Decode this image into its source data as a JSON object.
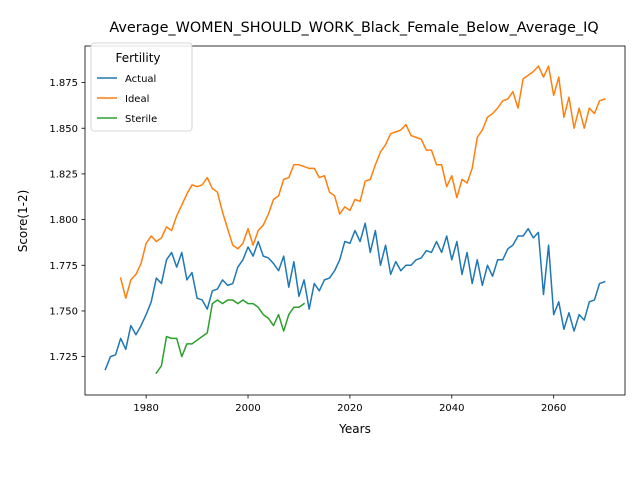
{
  "chart_data": {
    "type": "line",
    "title": "Average_WOMEN_SHOULD_WORK_Black_Female_Below_Average_IQ",
    "xlabel": "Years",
    "ylabel": "Score(1-2)",
    "xlim": [
      1968,
      2074
    ],
    "ylim": [
      1.704,
      1.895
    ],
    "xticks": [
      1980,
      2000,
      2020,
      2040,
      2060
    ],
    "xtick_labels": [
      "1980",
      "2000",
      "2020",
      "2040",
      "2060"
    ],
    "yticks": [
      1.725,
      1.75,
      1.775,
      1.8,
      1.825,
      1.85,
      1.875
    ],
    "ytick_labels": [
      "1.725",
      "1.750",
      "1.775",
      "1.800",
      "1.825",
      "1.850",
      "1.875"
    ],
    "grid": false,
    "legend": {
      "title": "Fertility",
      "placement": "top-left"
    },
    "series": [
      {
        "name": "Actual",
        "color": "#1f77b4",
        "x": [
          1972,
          1973,
          1974,
          1975,
          1976,
          1977,
          1978,
          1979,
          1980,
          1981,
          1982,
          1983,
          1984,
          1985,
          1986,
          1987,
          1988,
          1989,
          1990,
          1991,
          1992,
          1993,
          1994,
          1995,
          1996,
          1997,
          1998,
          1999,
          2000,
          2001,
          2002,
          2003,
          2004,
          2005,
          2006,
          2007,
          2008,
          2009,
          2010,
          2011,
          2012,
          2013,
          2014,
          2015,
          2016,
          2017,
          2018,
          2019,
          2020,
          2021,
          2022,
          2023,
          2024,
          2025,
          2026,
          2027,
          2028,
          2029,
          2030,
          2031,
          2032,
          2033,
          2034,
          2035,
          2036,
          2037,
          2038,
          2039,
          2040,
          2041,
          2042,
          2043,
          2044,
          2045,
          2046,
          2047,
          2048,
          2049,
          2050,
          2051,
          2052,
          2053,
          2054,
          2055,
          2056,
          2057,
          2058,
          2059,
          2060,
          2061,
          2062,
          2063,
          2064,
          2065,
          2066,
          2067,
          2068,
          2069,
          2070
        ],
        "y": [
          1.718,
          1.725,
          1.726,
          1.735,
          1.729,
          1.742,
          1.737,
          1.742,
          1.748,
          1.755,
          1.768,
          1.765,
          1.778,
          1.782,
          1.774,
          1.782,
          1.767,
          1.771,
          1.757,
          1.756,
          1.751,
          1.761,
          1.762,
          1.767,
          1.764,
          1.765,
          1.774,
          1.778,
          1.785,
          1.78,
          1.788,
          1.78,
          1.779,
          1.776,
          1.772,
          1.78,
          1.763,
          1.777,
          1.758,
          1.767,
          1.751,
          1.765,
          1.761,
          1.767,
          1.768,
          1.772,
          1.778,
          1.788,
          1.787,
          1.794,
          1.788,
          1.798,
          1.782,
          1.794,
          1.775,
          1.786,
          1.77,
          1.777,
          1.772,
          1.775,
          1.775,
          1.778,
          1.779,
          1.783,
          1.782,
          1.788,
          1.782,
          1.791,
          1.778,
          1.788,
          1.77,
          1.782,
          1.765,
          1.778,
          1.764,
          1.775,
          1.769,
          1.778,
          1.778,
          1.784,
          1.786,
          1.791,
          1.791,
          1.795,
          1.79,
          1.793,
          1.759,
          1.786,
          1.748,
          1.755,
          1.74,
          1.749,
          1.739,
          1.748,
          1.745,
          1.755,
          1.756,
          1.765,
          1.766
        ]
      },
      {
        "name": "Ideal",
        "color": "#ff7f0e",
        "x": [
          1975,
          1976,
          1977,
          1978,
          1979,
          1980,
          1981,
          1982,
          1983,
          1984,
          1985,
          1986,
          1987,
          1988,
          1989,
          1990,
          1991,
          1992,
          1993,
          1994,
          1995,
          1996,
          1997,
          1998,
          1999,
          2000,
          2001,
          2002,
          2003,
          2004,
          2005,
          2006,
          2007,
          2008,
          2009,
          2010,
          2011,
          2012,
          2013,
          2014,
          2015,
          2016,
          2017,
          2018,
          2019,
          2020,
          2021,
          2022,
          2023,
          2024,
          2025,
          2026,
          2027,
          2028,
          2029,
          2030,
          2031,
          2032,
          2033,
          2034,
          2035,
          2036,
          2037,
          2038,
          2039,
          2040,
          2041,
          2042,
          2043,
          2044,
          2045,
          2046,
          2047,
          2048,
          2049,
          2050,
          2051,
          2052,
          2053,
          2054,
          2055,
          2056,
          2057,
          2058,
          2059,
          2060,
          2061,
          2062,
          2063,
          2064,
          2065,
          2066,
          2067,
          2068,
          2069,
          2070
        ],
        "y": [
          1.768,
          1.757,
          1.767,
          1.77,
          1.776,
          1.787,
          1.791,
          1.788,
          1.79,
          1.796,
          1.794,
          1.802,
          1.808,
          1.814,
          1.819,
          1.818,
          1.819,
          1.823,
          1.817,
          1.815,
          1.804,
          1.795,
          1.786,
          1.784,
          1.787,
          1.795,
          1.786,
          1.794,
          1.797,
          1.803,
          1.811,
          1.813,
          1.822,
          1.823,
          1.83,
          1.83,
          1.829,
          1.828,
          1.828,
          1.823,
          1.824,
          1.815,
          1.813,
          1.803,
          1.807,
          1.805,
          1.811,
          1.81,
          1.821,
          1.822,
          1.83,
          1.837,
          1.841,
          1.847,
          1.848,
          1.849,
          1.852,
          1.846,
          1.845,
          1.844,
          1.838,
          1.838,
          1.83,
          1.83,
          1.818,
          1.824,
          1.812,
          1.822,
          1.82,
          1.828,
          1.845,
          1.849,
          1.856,
          1.858,
          1.861,
          1.865,
          1.866,
          1.87,
          1.861,
          1.877,
          1.879,
          1.881,
          1.884,
          1.878,
          1.884,
          1.868,
          1.878,
          1.856,
          1.867,
          1.85,
          1.861,
          1.85,
          1.861,
          1.858,
          1.865,
          1.866
        ]
      },
      {
        "name": "Sterile",
        "color": "#2ca02c",
        "x": [
          1982,
          1983,
          1984,
          1985,
          1986,
          1987,
          1988,
          1989,
          1990,
          1991,
          1992,
          1993,
          1994,
          1995,
          1996,
          1997,
          1998,
          1999,
          2000,
          2001,
          2002,
          2003,
          2004,
          2005,
          2006,
          2007,
          2008,
          2009,
          2010,
          2011
        ],
        "y": [
          1.716,
          1.72,
          1.736,
          1.735,
          1.735,
          1.725,
          1.732,
          1.732,
          1.734,
          1.736,
          1.738,
          1.754,
          1.756,
          1.754,
          1.756,
          1.756,
          1.754,
          1.756,
          1.754,
          1.754,
          1.752,
          1.748,
          1.746,
          1.742,
          1.748,
          1.739,
          1.748,
          1.752,
          1.752,
          1.754
        ]
      }
    ]
  }
}
